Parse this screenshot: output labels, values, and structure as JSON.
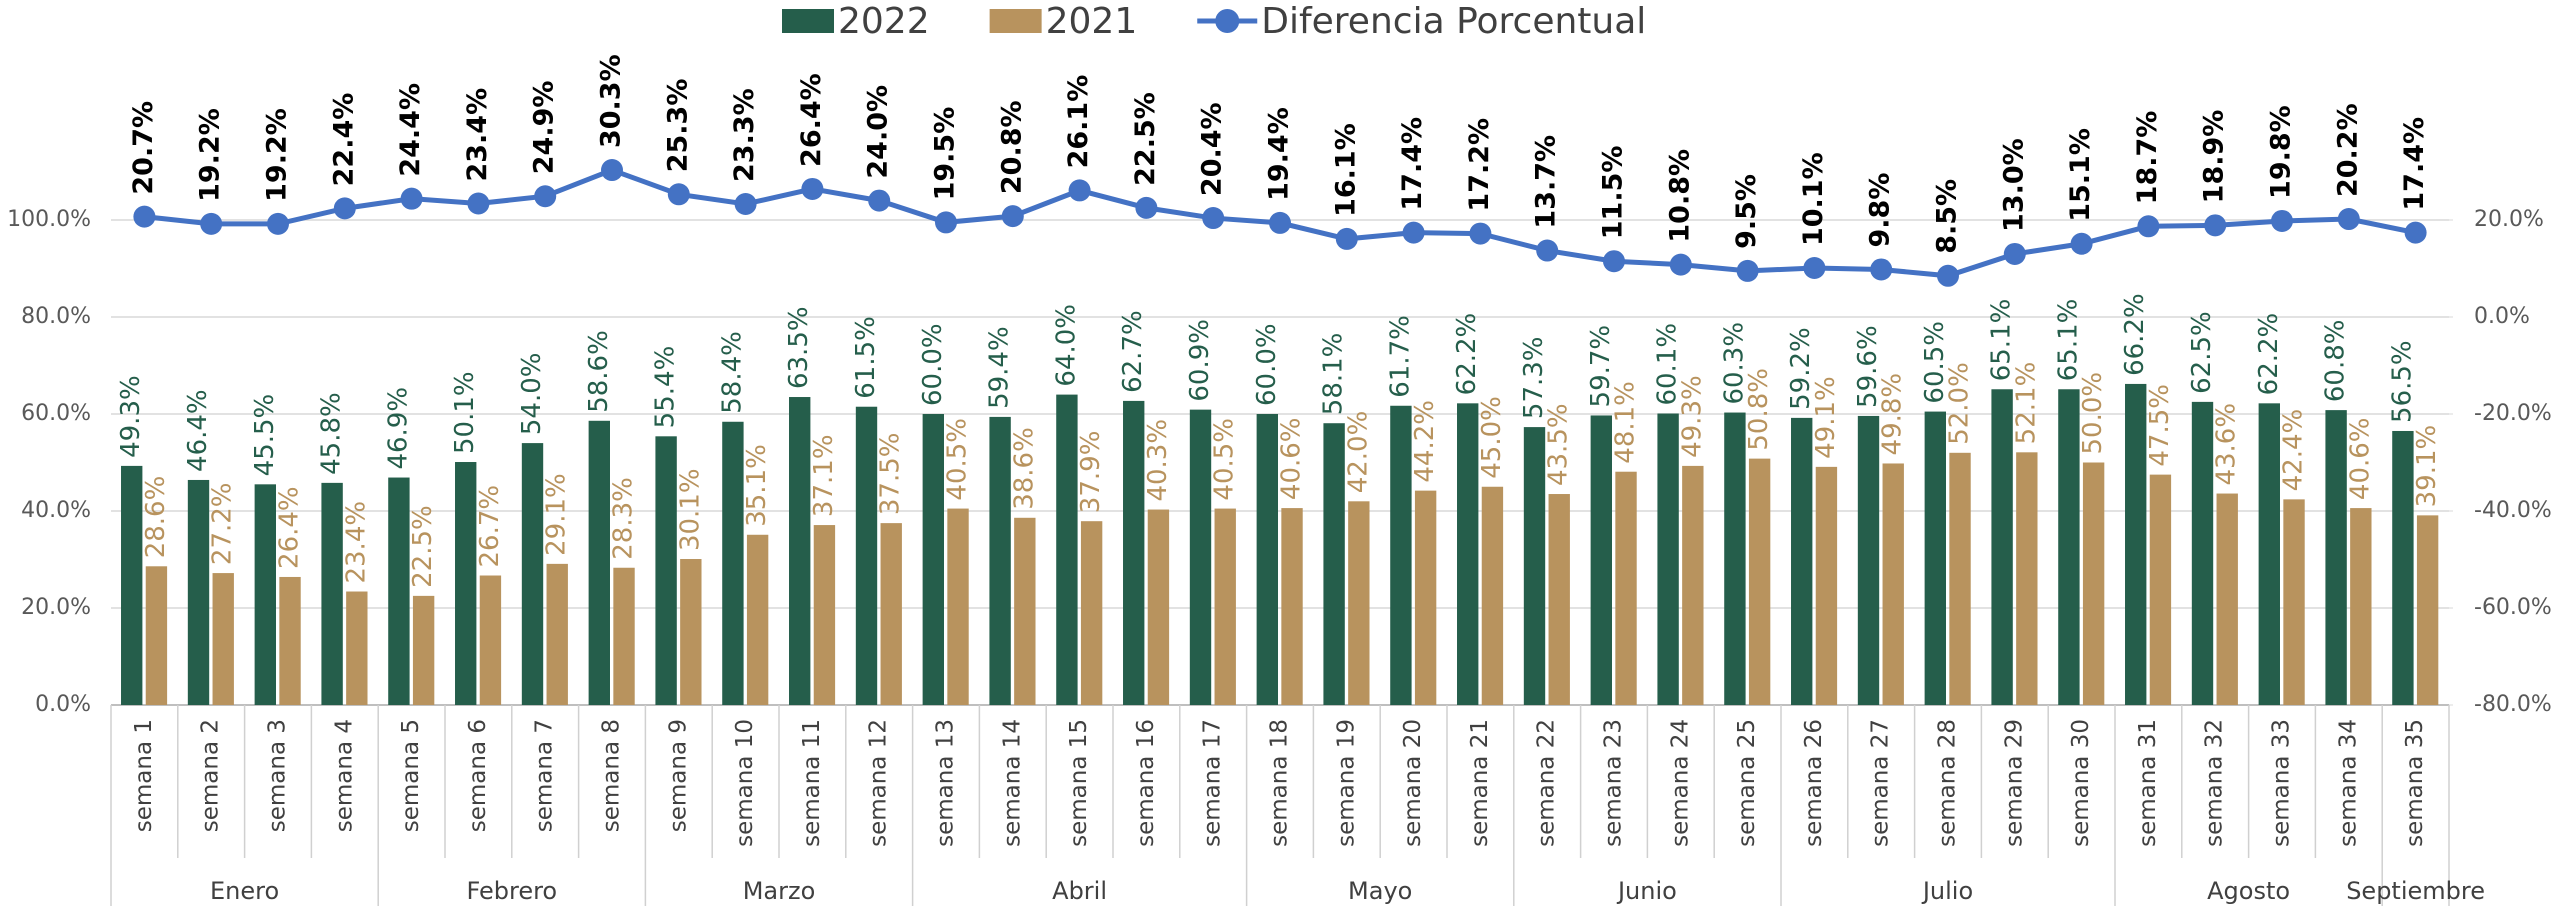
{
  "chart_data": {
    "type": "bar",
    "categories": [
      "semana 1",
      "semana 2",
      "semana 3",
      "semana 4",
      "semana 5",
      "semana 6",
      "semana 7",
      "semana 8",
      "semana 9",
      "semana 10",
      "semana 11",
      "semana 12",
      "semana 13",
      "semana 14",
      "semana 15",
      "semana 16",
      "semana 17",
      "semana 18",
      "semana 19",
      "semana 20",
      "semana 21",
      "semana 22",
      "semana 23",
      "semana 24",
      "semana 25",
      "semana 26",
      "semana 27",
      "semana 28",
      "semana 29",
      "semana 30",
      "semana 31",
      "semana 32",
      "semana 33",
      "semana 34",
      "semana 35"
    ],
    "months": [
      "Enero",
      "Enero",
      "Enero",
      "Enero",
      "Febrero",
      "Febrero",
      "Febrero",
      "Febrero",
      "Marzo",
      "Marzo",
      "Marzo",
      "Marzo",
      "Abril",
      "Abril",
      "Abril",
      "Abril",
      "Abril",
      "Mayo",
      "Mayo",
      "Mayo",
      "Mayo",
      "Junio",
      "Junio",
      "Junio",
      "Junio",
      "Julio",
      "Julio",
      "Julio",
      "Julio",
      "Julio",
      "Agosto",
      "Agosto",
      "Agosto",
      "Agosto",
      "Septiembre"
    ],
    "series": [
      {
        "name": "2022",
        "color": "#255e4b",
        "values": [
          49.3,
          46.4,
          45.5,
          45.8,
          46.9,
          50.1,
          54.0,
          58.6,
          55.4,
          58.4,
          63.5,
          61.5,
          60.0,
          59.4,
          64.0,
          62.7,
          60.9,
          60.0,
          58.1,
          61.7,
          62.2,
          57.3,
          59.7,
          60.1,
          60.3,
          59.2,
          59.6,
          60.5,
          65.1,
          65.1,
          66.2,
          62.5,
          62.2,
          60.8,
          56.5
        ],
        "value_labels": [
          "49.3%",
          "46.4%",
          "45.5%",
          "45.8%",
          "46.9%",
          "50.1%",
          "54.0%",
          "58.6%",
          "55.4%",
          "58.4%",
          "63.5%",
          "61.5%",
          "60.0%",
          "59.4%",
          "64.0%",
          "62.7%",
          "60.9%",
          "60.0%",
          "58.1%",
          "61.7%",
          "62.2%",
          "57.3%",
          "59.7%",
          "60.1%",
          "60.3%",
          "59.2%",
          "59.6%",
          "60.5%",
          "65.1%",
          "65.1%",
          "66.2%",
          "62.5%",
          "62.2%",
          "60.8%",
          "56.5%"
        ]
      },
      {
        "name": "2021",
        "color": "#b8935e",
        "values": [
          28.6,
          27.2,
          26.4,
          23.4,
          22.5,
          26.7,
          29.1,
          28.3,
          30.1,
          35.1,
          37.1,
          37.5,
          40.5,
          38.6,
          37.9,
          40.3,
          40.5,
          40.6,
          42.0,
          44.2,
          45.0,
          43.5,
          48.1,
          49.3,
          50.8,
          49.1,
          49.8,
          52.0,
          52.1,
          50.0,
          47.5,
          43.6,
          42.4,
          40.6,
          39.1
        ],
        "value_labels": [
          "28.6%",
          "27.2%",
          "26.4%",
          "23.4%",
          "22.5%",
          "26.7%",
          "29.1%",
          "28.3%",
          "30.1%",
          "35.1%",
          "37.1%",
          "37.5%",
          "40.5%",
          "38.6%",
          "37.9%",
          "40.3%",
          "40.5%",
          "40.6%",
          "42.0%",
          "44.2%",
          "45.0%",
          "43.5%",
          "48.1%",
          "49.3%",
          "50.8%",
          "49.1%",
          "49.8%",
          "52.0%",
          "52.1%",
          "50.0%",
          "47.5%",
          "43.6%",
          "42.4%",
          "40.6%",
          "39.1%"
        ]
      },
      {
        "name": "Diferencia Porcentual",
        "type": "line",
        "axis": "y2",
        "color": "#4472c4",
        "values": [
          20.7,
          19.2,
          19.2,
          22.4,
          24.4,
          23.4,
          24.9,
          30.3,
          25.3,
          23.3,
          26.4,
          24.0,
          19.5,
          20.8,
          26.1,
          22.5,
          20.4,
          19.4,
          16.1,
          17.4,
          17.2,
          13.7,
          11.5,
          10.8,
          9.5,
          10.1,
          9.8,
          8.5,
          13.0,
          15.1,
          18.7,
          18.9,
          19.8,
          20.2,
          17.4
        ],
        "value_labels": [
          "20.7%",
          "19.2%",
          "19.2%",
          "22.4%",
          "24.4%",
          "23.4%",
          "24.9%",
          "30.3%",
          "25.3%",
          "23.3%",
          "26.4%",
          "24.0%",
          "19.5%",
          "20.8%",
          "26.1%",
          "22.5%",
          "20.4%",
          "19.4%",
          "16.1%",
          "17.4%",
          "17.2%",
          "13.7%",
          "11.5%",
          "10.8%",
          "9.5%",
          "10.1%",
          "9.8%",
          "8.5%",
          "13.0%",
          "15.1%",
          "18.7%",
          "18.9%",
          "19.8%",
          "20.2%",
          "17.4%"
        ]
      }
    ],
    "ylim": [
      0,
      100
    ],
    "yticks": [
      {
        "value": 0,
        "label": "0.0%"
      },
      {
        "value": 20,
        "label": "20.0%"
      },
      {
        "value": 40,
        "label": "40.0%"
      },
      {
        "value": 60,
        "label": "60.0%"
      },
      {
        "value": 80,
        "label": "80.0%"
      },
      {
        "value": 100,
        "label": "100.0%"
      }
    ],
    "y2lim": [
      -80,
      20
    ],
    "y2ticks": [
      {
        "value": -80,
        "label": "-80.0%"
      },
      {
        "value": -60,
        "label": "-60.0%"
      },
      {
        "value": -40,
        "label": "-40.0%"
      },
      {
        "value": -20,
        "label": "-20.0%"
      },
      {
        "value": 0,
        "label": "0.0%"
      },
      {
        "value": 20,
        "label": "20.0%"
      }
    ],
    "grid": true,
    "legend": "top"
  }
}
